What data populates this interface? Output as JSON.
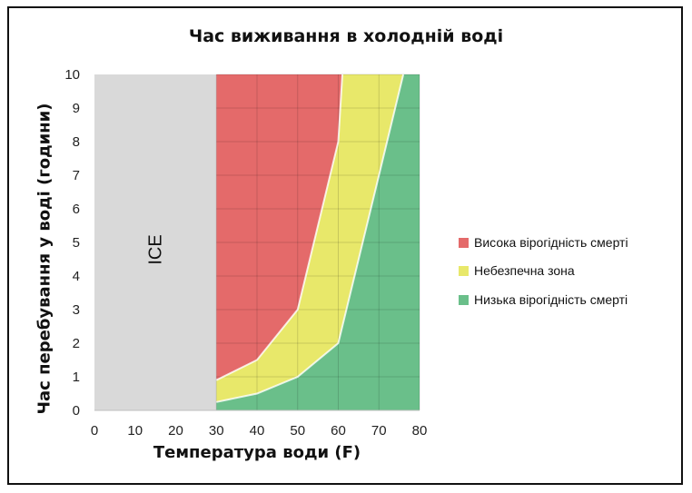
{
  "chart_data": {
    "type": "area",
    "title": "Час виживання в холодній воді",
    "xlabel": "Температура води (F)",
    "ylabel": "Час перебування у воді (години)",
    "xlim": [
      0,
      80
    ],
    "ylim": [
      0,
      10
    ],
    "x_ticks": [
      "0",
      "10",
      "20",
      "30",
      "40",
      "50",
      "60",
      "70",
      "80"
    ],
    "y_ticks": [
      "0",
      "1",
      "2",
      "3",
      "4",
      "5",
      "6",
      "7",
      "8",
      "9",
      "10"
    ],
    "grid": true,
    "legend_position": "right",
    "ice_region": {
      "label": "ICE",
      "x_range": [
        0,
        30
      ],
      "color": "#d9d9d9"
    },
    "series": [
      {
        "name": "Висока вірогідність смерті",
        "color": "#e46a6a",
        "x": [
          30,
          60,
          61,
          30
        ],
        "y": [
          10,
          10,
          8,
          0.9
        ],
        "region": "above-yellow"
      },
      {
        "name": "Небезпечна зона",
        "color": "#e8e86a",
        "upper": {
          "x": [
            30,
            40,
            50,
            60,
            61
          ],
          "y": [
            0.9,
            1.5,
            3,
            8,
            10
          ]
        },
        "lower": {
          "x": [
            30,
            40,
            50,
            60,
            70,
            76
          ],
          "y": [
            0.25,
            0.5,
            1,
            2,
            7,
            10
          ]
        }
      },
      {
        "name": "Низька вірогідність смерті",
        "color": "#6abf8a",
        "upper": {
          "x": [
            30,
            40,
            50,
            60,
            70,
            76
          ],
          "y": [
            0.25,
            0.5,
            1,
            2,
            7,
            10
          ]
        }
      }
    ]
  }
}
